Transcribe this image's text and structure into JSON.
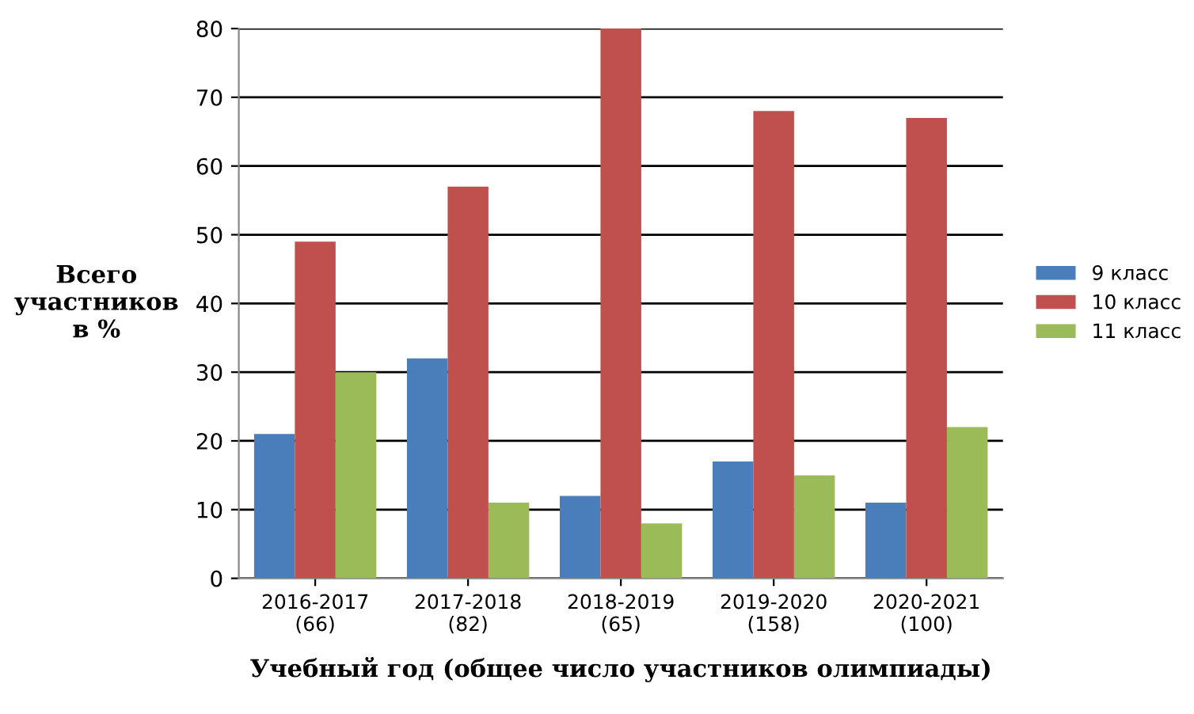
{
  "chart_data": {
    "type": "bar",
    "ylabel": "Всего\nучастников\nв %",
    "xlabel": "Учебный год (общее число участников олимпиады)",
    "categories": [
      "2016-2017\n(66)",
      "2017-2018\n(82)",
      "2018-2019\n(65)",
      "2019-2020\n(158)",
      "2020-2021\n(100)"
    ],
    "series": [
      {
        "name": "9 класс",
        "color": "#4a7ebb",
        "values": [
          21,
          32,
          12,
          17,
          11
        ]
      },
      {
        "name": "10 класс",
        "color": "#c0504d",
        "values": [
          49,
          57,
          80,
          68,
          67
        ]
      },
      {
        "name": "11 класс",
        "color": "#9bbb59",
        "values": [
          30,
          11,
          8,
          15,
          22
        ]
      }
    ],
    "ylim": [
      0,
      80
    ],
    "yticks": [
      0,
      10,
      20,
      30,
      40,
      50,
      60,
      70,
      80
    ],
    "grid": "y",
    "legend": "right"
  }
}
